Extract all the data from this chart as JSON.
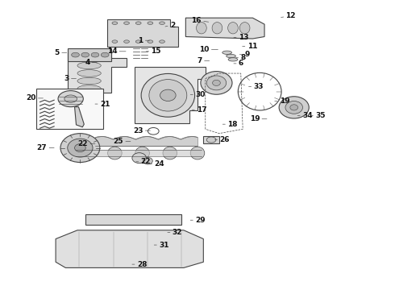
{
  "background_color": "#ffffff",
  "figure_width": 4.9,
  "figure_height": 3.6,
  "dpi": 100,
  "label_color": "#111111",
  "label_fontsize": 6.5,
  "line_color": "#444444"
}
